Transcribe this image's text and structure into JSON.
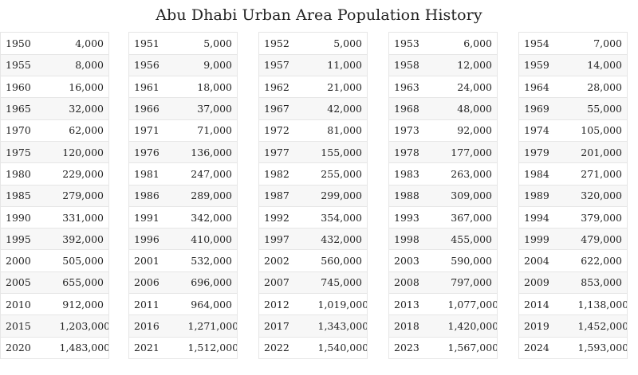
{
  "title": "Abu Dhabi Urban Area Population History",
  "columns": [
    {
      "rows": [
        {
          "year": "1950",
          "population": "4,000"
        },
        {
          "year": "1955",
          "population": "8,000"
        },
        {
          "year": "1960",
          "population": "16,000"
        },
        {
          "year": "1965",
          "population": "32,000"
        },
        {
          "year": "1970",
          "population": "62,000"
        },
        {
          "year": "1975",
          "population": "120,000"
        },
        {
          "year": "1980",
          "population": "229,000"
        },
        {
          "year": "1985",
          "population": "279,000"
        },
        {
          "year": "1990",
          "population": "331,000"
        },
        {
          "year": "1995",
          "population": "392,000"
        },
        {
          "year": "2000",
          "population": "505,000"
        },
        {
          "year": "2005",
          "population": "655,000"
        },
        {
          "year": "2010",
          "population": "912,000"
        },
        {
          "year": "2015",
          "population": "1,203,000"
        },
        {
          "year": "2020",
          "population": "1,483,000"
        }
      ]
    },
    {
      "rows": [
        {
          "year": "1951",
          "population": "5,000"
        },
        {
          "year": "1956",
          "population": "9,000"
        },
        {
          "year": "1961",
          "population": "18,000"
        },
        {
          "year": "1966",
          "population": "37,000"
        },
        {
          "year": "1971",
          "population": "71,000"
        },
        {
          "year": "1976",
          "population": "136,000"
        },
        {
          "year": "1981",
          "population": "247,000"
        },
        {
          "year": "1986",
          "population": "289,000"
        },
        {
          "year": "1991",
          "population": "342,000"
        },
        {
          "year": "1996",
          "population": "410,000"
        },
        {
          "year": "2001",
          "population": "532,000"
        },
        {
          "year": "2006",
          "population": "696,000"
        },
        {
          "year": "2011",
          "population": "964,000"
        },
        {
          "year": "2016",
          "population": "1,271,000"
        },
        {
          "year": "2021",
          "population": "1,512,000"
        }
      ]
    },
    {
      "rows": [
        {
          "year": "1952",
          "population": "5,000"
        },
        {
          "year": "1957",
          "population": "11,000"
        },
        {
          "year": "1962",
          "population": "21,000"
        },
        {
          "year": "1967",
          "population": "42,000"
        },
        {
          "year": "1972",
          "population": "81,000"
        },
        {
          "year": "1977",
          "population": "155,000"
        },
        {
          "year": "1982",
          "population": "255,000"
        },
        {
          "year": "1987",
          "population": "299,000"
        },
        {
          "year": "1992",
          "population": "354,000"
        },
        {
          "year": "1997",
          "population": "432,000"
        },
        {
          "year": "2002",
          "population": "560,000"
        },
        {
          "year": "2007",
          "population": "745,000"
        },
        {
          "year": "2012",
          "population": "1,019,000"
        },
        {
          "year": "2017",
          "population": "1,343,000"
        },
        {
          "year": "2022",
          "population": "1,540,000"
        }
      ]
    },
    {
      "rows": [
        {
          "year": "1953",
          "population": "6,000"
        },
        {
          "year": "1958",
          "population": "12,000"
        },
        {
          "year": "1963",
          "population": "24,000"
        },
        {
          "year": "1968",
          "population": "48,000"
        },
        {
          "year": "1973",
          "population": "92,000"
        },
        {
          "year": "1978",
          "population": "177,000"
        },
        {
          "year": "1983",
          "population": "263,000"
        },
        {
          "year": "1988",
          "population": "309,000"
        },
        {
          "year": "1993",
          "population": "367,000"
        },
        {
          "year": "1998",
          "population": "455,000"
        },
        {
          "year": "2003",
          "population": "590,000"
        },
        {
          "year": "2008",
          "population": "797,000"
        },
        {
          "year": "2013",
          "population": "1,077,000"
        },
        {
          "year": "2018",
          "population": "1,420,000"
        },
        {
          "year": "2023",
          "population": "1,567,000"
        }
      ]
    },
    {
      "rows": [
        {
          "year": "1954",
          "population": "7,000"
        },
        {
          "year": "1959",
          "population": "14,000"
        },
        {
          "year": "1964",
          "population": "28,000"
        },
        {
          "year": "1969",
          "population": "55,000"
        },
        {
          "year": "1974",
          "population": "105,000"
        },
        {
          "year": "1979",
          "population": "201,000"
        },
        {
          "year": "1984",
          "population": "271,000"
        },
        {
          "year": "1989",
          "population": "320,000"
        },
        {
          "year": "1994",
          "population": "379,000"
        },
        {
          "year": "1999",
          "population": "479,000"
        },
        {
          "year": "2004",
          "population": "622,000"
        },
        {
          "year": "2009",
          "population": "853,000"
        },
        {
          "year": "2014",
          "population": "1,138,000"
        },
        {
          "year": "2019",
          "population": "1,452,000"
        },
        {
          "year": "2024",
          "population": "1,593,000"
        }
      ]
    }
  ]
}
